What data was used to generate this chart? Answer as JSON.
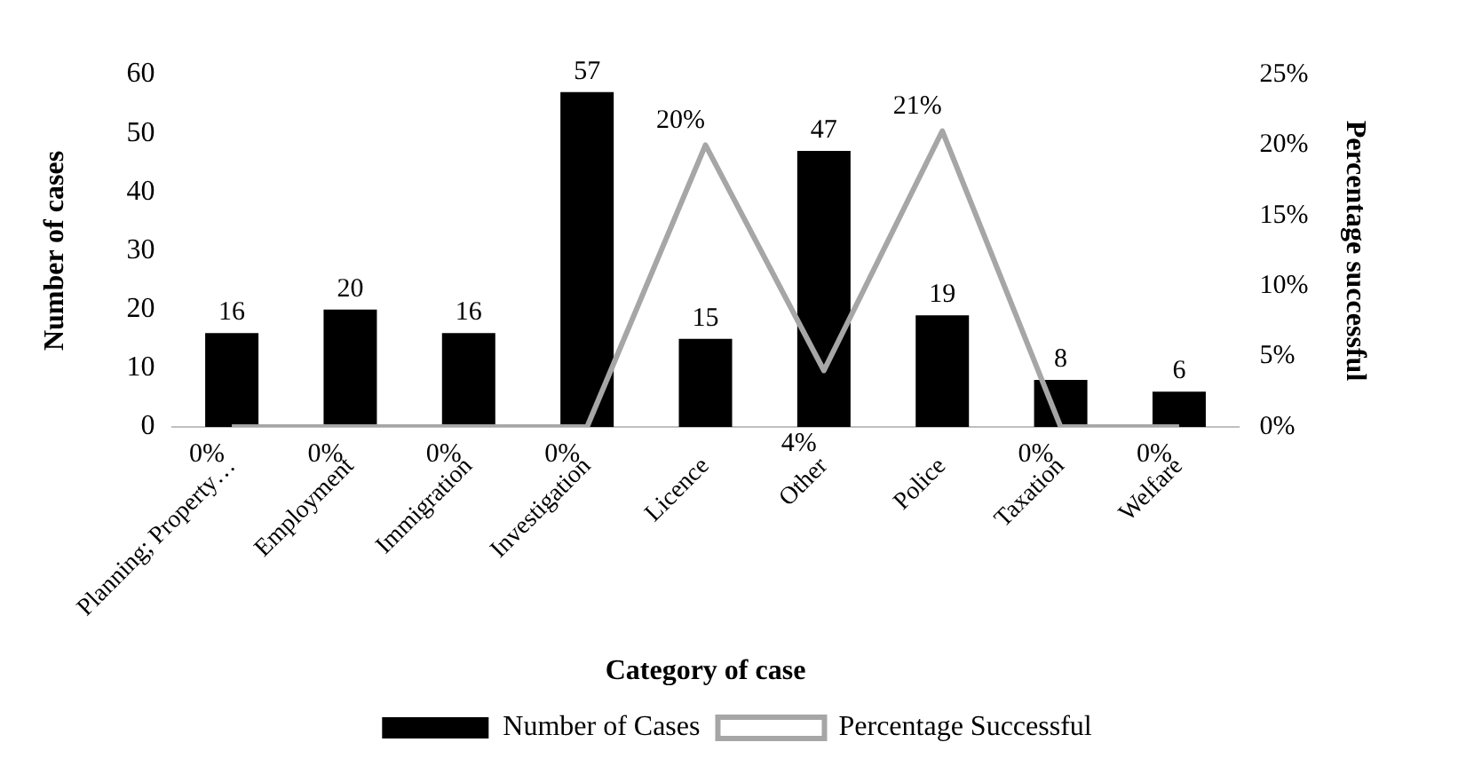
{
  "chart_data": {
    "type": "bar",
    "xlabel": "Category of case",
    "ylabel": "Number of cases",
    "y2label": "Percentage successful",
    "categories": [
      "Planning; Property…",
      "Employment",
      "Immigration",
      "Investigation",
      "Licence",
      "Other",
      "Police",
      "Taxation",
      "Welfare"
    ],
    "series": [
      {
        "name": "Number of Cases",
        "color": "#000000",
        "values": [
          16,
          20,
          16,
          57,
          15,
          47,
          19,
          8,
          6
        ]
      },
      {
        "name": "Percentage Successful",
        "type": "line",
        "axis": "y2",
        "color": "#a6a6a6",
        "values": [
          0,
          0,
          0,
          0,
          20,
          4,
          21,
          0,
          0
        ],
        "value_labels": [
          "0%",
          "0%",
          "0%",
          "0%",
          "20%",
          "4%",
          "21%",
          "0%",
          "0%"
        ]
      }
    ],
    "ylim": [
      0,
      60
    ],
    "yticks": [
      0,
      10,
      20,
      30,
      40,
      50,
      60
    ],
    "y2lim": [
      0,
      25
    ],
    "y2ticks": [
      {
        "value": 0,
        "label": "0%"
      },
      {
        "value": 5,
        "label": "5%"
      },
      {
        "value": 10,
        "label": "10%"
      },
      {
        "value": 15,
        "label": "15%"
      },
      {
        "value": 20,
        "label": "20%"
      },
      {
        "value": 25,
        "label": "25%"
      }
    ],
    "data_labels": true,
    "grid": false,
    "legend": "bottom",
    "marker": "none"
  }
}
